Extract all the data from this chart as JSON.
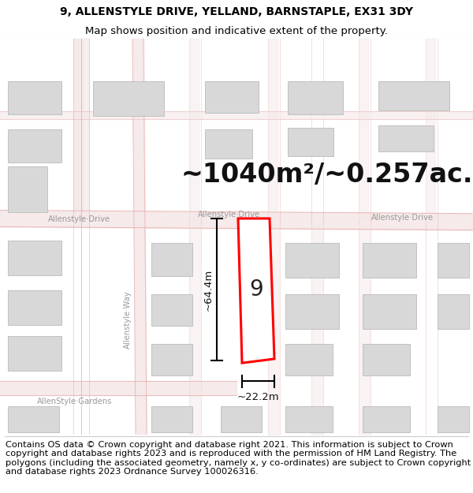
{
  "title_line1": "9, ALLENSTYLE DRIVE, YELLAND, BARNSTAPLE, EX31 3DY",
  "title_line2": "Map shows position and indicative extent of the property.",
  "footer_text": "Contains OS data © Crown copyright and database right 2021. This information is subject to Crown copyright and database rights 2023 and is reproduced with the permission of HM Land Registry. The polygons (including the associated geometry, namely x, y co-ordinates) are subject to Crown copyright and database rights 2023 Ordnance Survey 100026316.",
  "area_text": "~1040m²/~0.257ac.",
  "number_label": "9",
  "dim_height": "~64.4m",
  "dim_width": "~22.2m",
  "road_label_left": "Allenstyle·Drive",
  "road_label_mid": "Allenstyle·Drive",
  "road_label_right": "Allenstyle·Drive",
  "road_label_vert": "Allenstyle·Way",
  "road_label_bottom": "AllenStyle·Gardens",
  "bg_color": "#ffffff",
  "map_bg": "#f8f4f4",
  "road_color": "#e8aaaa",
  "road_fill": "#f5e8e8",
  "building_fill": "#d8d8d8",
  "building_edge": "#bbbbbb",
  "plot_stroke": "#ff0000",
  "plot_fill": "#ffffff",
  "dim_line_color": "#000000",
  "title_fontsize": 10,
  "subtitle_fontsize": 9.5,
  "area_fontsize": 24,
  "footer_fontsize": 8.2
}
